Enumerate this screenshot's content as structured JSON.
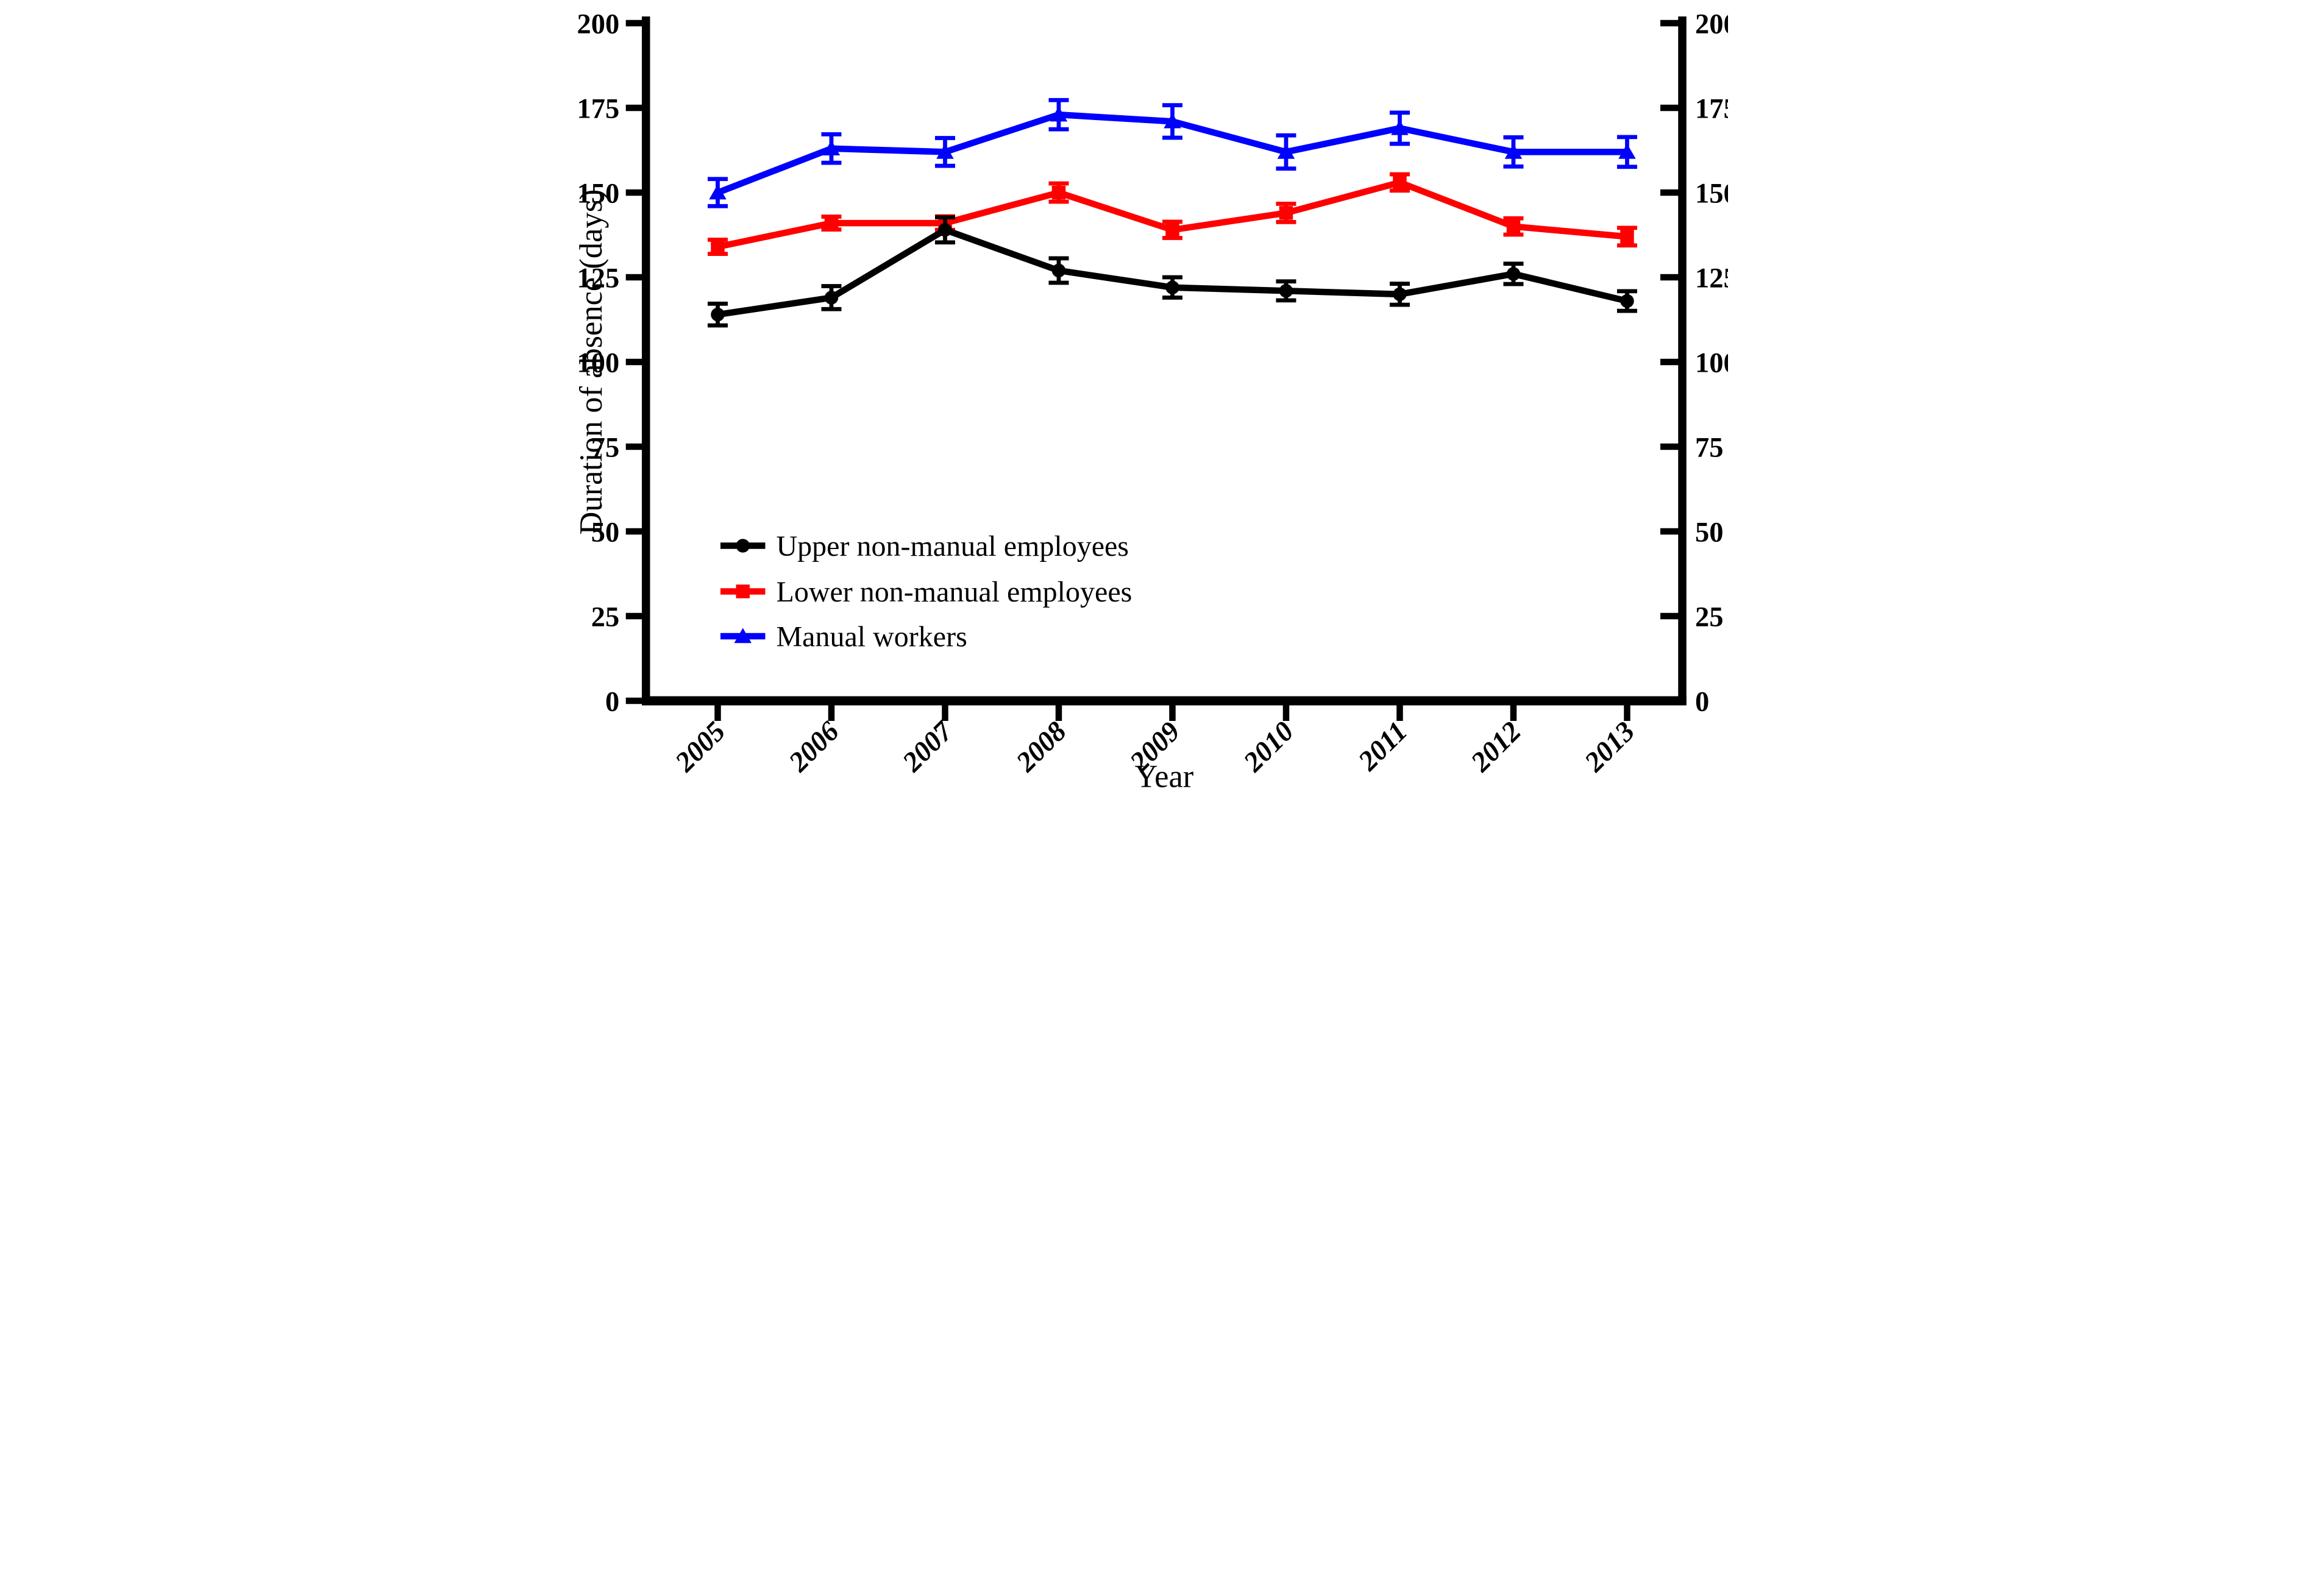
{
  "figure": {
    "background": "#ffffff",
    "frame_color": "#000000"
  },
  "chart_data": {
    "type": "line",
    "title": "",
    "xlabel": "Year",
    "ylabel": "Duration of absence (days)",
    "categories": [
      "2005",
      "2006",
      "2007",
      "2008",
      "2009",
      "2010",
      "2011",
      "2012",
      "2013"
    ],
    "y_axis": {
      "min": 0,
      "max": 200,
      "tick_step": 25,
      "ticks": [
        0,
        25,
        50,
        75,
        100,
        125,
        150,
        175,
        200
      ],
      "mirrored_right_axis": true,
      "grid": false
    },
    "error_bars": "95% CI, symmetric, cap style",
    "series": [
      {
        "name": "Upper non-manual employees",
        "color": "#000000",
        "marker": "circle",
        "values": [
          114,
          119,
          139,
          127,
          122,
          121,
          120,
          126,
          118
        ],
        "errors": [
          3.2,
          3.4,
          3.7,
          3.6,
          3.0,
          2.8,
          3.1,
          3.0,
          2.9
        ]
      },
      {
        "name": "Lower non-manual employees",
        "color": "#ff0000",
        "marker": "square",
        "values": [
          134,
          141,
          141,
          150,
          139,
          144,
          153,
          140,
          137
        ],
        "errors": [
          2.1,
          1.9,
          2.0,
          2.7,
          2.4,
          2.7,
          2.4,
          2.4,
          2.6
        ]
      },
      {
        "name": "Manual workers",
        "color": "#0000ff",
        "marker": "triangle",
        "values": [
          150,
          163,
          162,
          173,
          171,
          162,
          169,
          162,
          162
        ],
        "errors": [
          4.0,
          4.2,
          4.1,
          4.3,
          4.8,
          4.9,
          4.6,
          4.3,
          4.4
        ]
      }
    ],
    "legend_position": "inside-lower-left"
  }
}
